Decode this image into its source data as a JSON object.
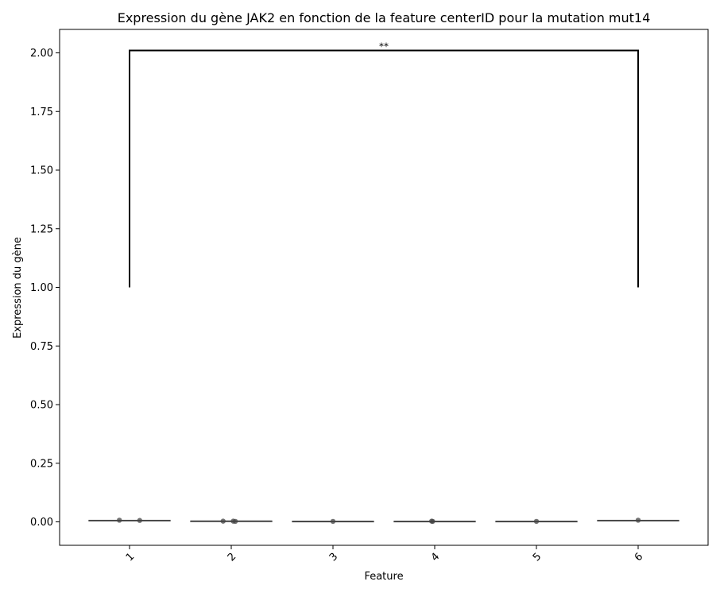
{
  "chart_data": {
    "type": "box",
    "title": "Expression du gène JAK2 en fonction de la feature centerID pour la mutation mut14",
    "xlabel": "Feature",
    "ylabel": "Expression du gène",
    "categories": [
      "1",
      "2",
      "3",
      "4",
      "5",
      "6"
    ],
    "ylim": [
      -0.1,
      2.1
    ],
    "yticks": [
      "0.00",
      "0.25",
      "0.50",
      "0.75",
      "1.00",
      "1.25",
      "1.50",
      "1.75",
      "2.00"
    ],
    "grid": false,
    "boxes": [
      {
        "category": "1",
        "median": 0.006,
        "q1": 0.005,
        "q3": 0.007,
        "whisker_low": 0.005,
        "whisker_high": 0.007
      },
      {
        "category": "2",
        "median": 0.003,
        "q1": 0.002,
        "q3": 0.004,
        "whisker_low": 0.002,
        "whisker_high": 0.004
      },
      {
        "category": "3",
        "median": 0.002,
        "q1": 0.002,
        "q3": 0.003,
        "whisker_low": 0.002,
        "whisker_high": 0.003
      },
      {
        "category": "4",
        "median": 0.002,
        "q1": 0.002,
        "q3": 0.003,
        "whisker_low": 0.002,
        "whisker_high": 0.003
      },
      {
        "category": "5",
        "median": 0.002,
        "q1": 0.002,
        "q3": 0.003,
        "whisker_low": 0.002,
        "whisker_high": 0.003
      },
      {
        "category": "6",
        "median": 0.006,
        "q1": 0.005,
        "q3": 0.007,
        "whisker_low": 0.005,
        "whisker_high": 0.007
      }
    ],
    "points": [
      {
        "category": "1",
        "jitter": -0.1,
        "y": 0.007
      },
      {
        "category": "1",
        "jitter": 0.1,
        "y": 0.006
      },
      {
        "category": "2",
        "jitter": -0.08,
        "y": 0.003
      },
      {
        "category": "2",
        "jitter": 0.02,
        "y": 0.003
      },
      {
        "category": "2",
        "jitter": 0.04,
        "y": 0.002
      },
      {
        "category": "3",
        "jitter": 0.0,
        "y": 0.002
      },
      {
        "category": "4",
        "jitter": -0.03,
        "y": 0.003
      },
      {
        "category": "4",
        "jitter": -0.02,
        "y": 0.002
      },
      {
        "category": "5",
        "jitter": 0.0,
        "y": 0.002
      },
      {
        "category": "6",
        "jitter": 0.0,
        "y": 0.007
      }
    ],
    "annotations": [
      {
        "type": "significance-bracket",
        "from": "1",
        "to": "6",
        "y_low": 1.0,
        "y_high": 2.01,
        "label": "**"
      }
    ]
  }
}
